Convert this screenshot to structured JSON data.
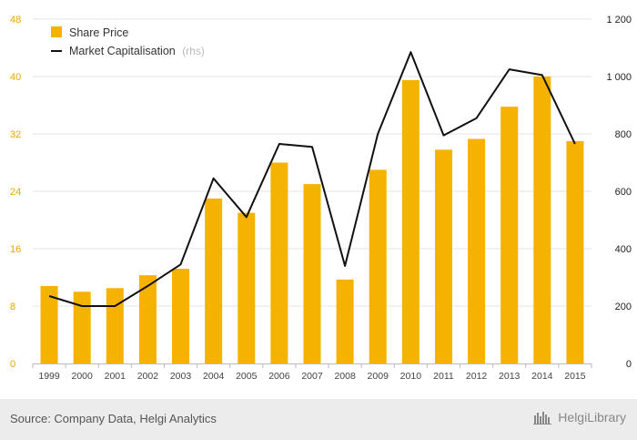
{
  "chart_data": {
    "type": "bar",
    "categories": [
      "1999",
      "2000",
      "2001",
      "2002",
      "2003",
      "2004",
      "2005",
      "2006",
      "2007",
      "2008",
      "2009",
      "2010",
      "2011",
      "2012",
      "2013",
      "2014",
      "2015"
    ],
    "series": [
      {
        "name": "Share Price",
        "type": "bar",
        "axis": "left",
        "color": "#f5b200",
        "values": [
          10.8,
          10.0,
          10.5,
          12.3,
          13.2,
          23.0,
          21.0,
          28.0,
          25.0,
          11.7,
          27.0,
          39.5,
          29.8,
          31.3,
          35.8,
          40.0,
          31.0
        ]
      },
      {
        "name": "Market Capitalisation",
        "name_suffix": "(rhs)",
        "type": "line",
        "axis": "right",
        "color": "#111111",
        "values": [
          235,
          200,
          200,
          270,
          345,
          645,
          510,
          765,
          755,
          340,
          800,
          1085,
          795,
          855,
          1025,
          1005,
          765
        ]
      }
    ],
    "ylim_left": [
      0,
      48
    ],
    "yticks_left": [
      "0",
      "8",
      "16",
      "24",
      "32",
      "40",
      "48"
    ],
    "ylim_right": [
      0,
      1200
    ],
    "yticks_right": [
      "0",
      "200",
      "400",
      "600",
      "800",
      "1 000",
      "1 200"
    ],
    "grid": true,
    "legend_position": "top-left"
  },
  "footer": {
    "source": "Source: Company Data, Helgi Analytics",
    "brand": "HelgiLibrary"
  }
}
